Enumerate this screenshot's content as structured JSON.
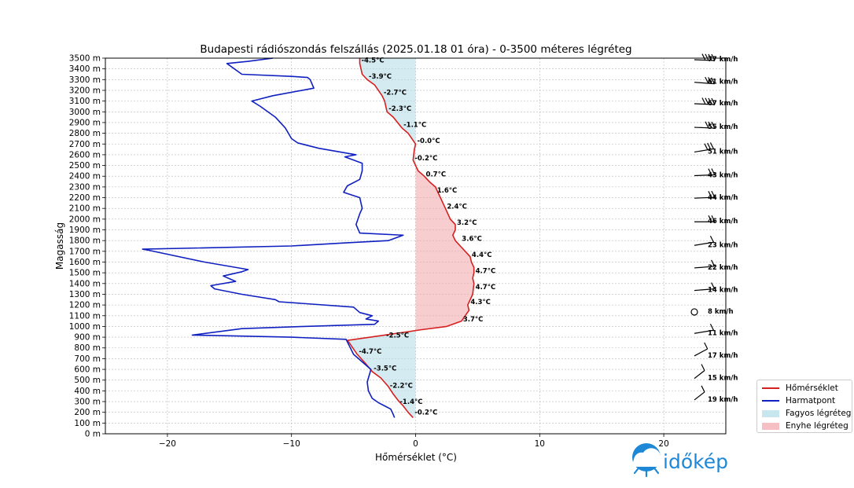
{
  "chart_data": {
    "type": "line",
    "title": "Budapesti rádiószondás felszállás (2025.01.18 01 óra) - 0-3500 méteres légréteg",
    "xlabel": "Hőmérséklet (°C)",
    "ylabel": "Magasság",
    "xlim": [
      -25,
      25
    ],
    "ylim": [
      0,
      3500
    ],
    "xticks": [
      -20,
      -10,
      0,
      10,
      20
    ],
    "xtick_labels": [
      "−20",
      "−10",
      "0",
      "10",
      "20"
    ],
    "yticks": [
      0,
      100,
      200,
      300,
      400,
      500,
      600,
      700,
      800,
      900,
      1000,
      1100,
      1200,
      1300,
      1400,
      1500,
      1600,
      1700,
      1800,
      1900,
      2000,
      2100,
      2200,
      2300,
      2400,
      2500,
      2600,
      2700,
      2800,
      2900,
      3000,
      3100,
      3200,
      3300,
      3400,
      3500
    ],
    "ytick_suffix": " m",
    "grid": true,
    "legend_position": "outside-right-bottom",
    "series": [
      {
        "name": "Hőmérséklet",
        "color": "#d62020",
        "points": [
          [
            -0.2,
            150
          ],
          [
            -0.6,
            200
          ],
          [
            -1.0,
            260
          ],
          [
            -1.4,
            310
          ],
          [
            -1.8,
            370
          ],
          [
            -2.2,
            440
          ],
          [
            -2.8,
            520
          ],
          [
            -3.5,
            580
          ],
          [
            -4.0,
            650
          ],
          [
            -4.7,
            740
          ],
          [
            -5.3,
            840
          ],
          [
            -5.5,
            870
          ],
          [
            -2.5,
            920
          ],
          [
            0.5,
            970
          ],
          [
            2.5,
            1000
          ],
          [
            3.7,
            1050
          ],
          [
            4.0,
            1100
          ],
          [
            4.3,
            1150
          ],
          [
            4.2,
            1200
          ],
          [
            4.6,
            1300
          ],
          [
            4.7,
            1400
          ],
          [
            4.6,
            1450
          ],
          [
            4.7,
            1500
          ],
          [
            4.7,
            1550
          ],
          [
            4.5,
            1600
          ],
          [
            4.4,
            1650
          ],
          [
            4.0,
            1700
          ],
          [
            3.6,
            1750
          ],
          [
            3.2,
            1800
          ],
          [
            3.0,
            1850
          ],
          [
            3.2,
            1900
          ],
          [
            3.2,
            1950
          ],
          [
            2.8,
            2000
          ],
          [
            2.4,
            2100
          ],
          [
            2.0,
            2200
          ],
          [
            1.6,
            2300
          ],
          [
            1.1,
            2350
          ],
          [
            0.7,
            2400
          ],
          [
            0.2,
            2450
          ],
          [
            -0.2,
            2550
          ],
          [
            -0.1,
            2650
          ],
          [
            0.0,
            2700
          ],
          [
            -0.6,
            2800
          ],
          [
            -1.1,
            2850
          ],
          [
            -1.8,
            2950
          ],
          [
            -2.3,
            3000
          ],
          [
            -2.5,
            3100
          ],
          [
            -2.7,
            3150
          ],
          [
            -3.3,
            3250
          ],
          [
            -3.9,
            3300
          ],
          [
            -4.3,
            3350
          ],
          [
            -4.5,
            3450
          ],
          [
            -4.5,
            3500
          ]
        ]
      },
      {
        "name": "Harmatpont",
        "color": "#1020c0",
        "points": [
          [
            -1.7,
            150
          ],
          [
            -1.8,
            180
          ],
          [
            -2.0,
            230
          ],
          [
            -2.5,
            260
          ],
          [
            -3.0,
            290
          ],
          [
            -3.5,
            330
          ],
          [
            -3.8,
            400
          ],
          [
            -3.9,
            480
          ],
          [
            -3.8,
            520
          ],
          [
            -3.6,
            600
          ],
          [
            -4.2,
            660
          ],
          [
            -5.0,
            740
          ],
          [
            -5.6,
            880
          ],
          [
            -10.0,
            900
          ],
          [
            -14.0,
            910
          ],
          [
            -18.0,
            920
          ],
          [
            -14.0,
            980
          ],
          [
            -9.0,
            1000
          ],
          [
            -3.3,
            1020
          ],
          [
            -3.0,
            1050
          ],
          [
            -4.0,
            1070
          ],
          [
            -3.5,
            1100
          ],
          [
            -4.5,
            1130
          ],
          [
            -5.0,
            1180
          ],
          [
            -11.0,
            1230
          ],
          [
            -11.3,
            1250
          ],
          [
            -14.0,
            1300
          ],
          [
            -16.2,
            1350
          ],
          [
            -16.5,
            1380
          ],
          [
            -14.5,
            1420
          ],
          [
            -15.5,
            1470
          ],
          [
            -14.0,
            1510
          ],
          [
            -13.5,
            1530
          ],
          [
            -17.0,
            1600
          ],
          [
            -21.5,
            1710
          ],
          [
            -22.0,
            1720
          ],
          [
            -10.0,
            1750
          ],
          [
            -5.5,
            1780
          ],
          [
            -2.2,
            1800
          ],
          [
            -1.0,
            1850
          ],
          [
            -4.5,
            1870
          ],
          [
            -4.8,
            1950
          ],
          [
            -4.5,
            2050
          ],
          [
            -4.3,
            2100
          ],
          [
            -4.5,
            2200
          ],
          [
            -5.8,
            2250
          ],
          [
            -5.5,
            2310
          ],
          [
            -4.5,
            2370
          ],
          [
            -4.3,
            2450
          ],
          [
            -4.3,
            2520
          ],
          [
            -5.7,
            2580
          ],
          [
            -4.8,
            2600
          ],
          [
            -7.8,
            2660
          ],
          [
            -9.5,
            2710
          ],
          [
            -10.0,
            2750
          ],
          [
            -10.5,
            2850
          ],
          [
            -11.3,
            2950
          ],
          [
            -12.5,
            3050
          ],
          [
            -13.2,
            3100
          ],
          [
            -11.5,
            3150
          ],
          [
            -8.2,
            3220
          ],
          [
            -8.5,
            3300
          ],
          [
            -8.7,
            3320
          ],
          [
            -10.0,
            3330
          ],
          [
            -14.0,
            3350
          ],
          [
            -15.2,
            3450
          ],
          [
            -13.5,
            3470
          ],
          [
            -11.5,
            3500
          ]
        ]
      }
    ],
    "fills": [
      {
        "name": "Fagyos légréteg",
        "color": "#b0dbe6"
      },
      {
        "name": "Enyhe légréteg",
        "color": "#f2a4aa"
      }
    ],
    "temperature_labels": [
      {
        "y": 200,
        "x": -0.2,
        "text": "-0.2°C"
      },
      {
        "y": 300,
        "x": -1.4,
        "text": "-1.4°C"
      },
      {
        "y": 450,
        "x": -2.2,
        "text": "-2.2°C"
      },
      {
        "y": 610,
        "x": -3.5,
        "text": "-3.5°C"
      },
      {
        "y": 770,
        "x": -4.7,
        "text": "-4.7°C"
      },
      {
        "y": 920,
        "x": -2.5,
        "text": "-2.5°C"
      },
      {
        "y": 1070,
        "x": 3.7,
        "text": "3.7°C"
      },
      {
        "y": 1230,
        "x": 4.3,
        "text": "4.3°C"
      },
      {
        "y": 1370,
        "x": 4.7,
        "text": "4.7°C"
      },
      {
        "y": 1520,
        "x": 4.7,
        "text": "4.7°C"
      },
      {
        "y": 1670,
        "x": 4.4,
        "text": "4.4°C"
      },
      {
        "y": 1820,
        "x": 3.6,
        "text": "3.6°C"
      },
      {
        "y": 1970,
        "x": 3.2,
        "text": "3.2°C"
      },
      {
        "y": 2120,
        "x": 2.4,
        "text": "2.4°C"
      },
      {
        "y": 2270,
        "x": 1.6,
        "text": "1.6°C"
      },
      {
        "y": 2420,
        "x": 0.7,
        "text": "0.7°C"
      },
      {
        "y": 2570,
        "x": -0.2,
        "text": "-0.2°C"
      },
      {
        "y": 2730,
        "x": 0.0,
        "text": "-0.0°C"
      },
      {
        "y": 2880,
        "x": -1.1,
        "text": "-1.1°C"
      },
      {
        "y": 3030,
        "x": -2.3,
        "text": "-2.3°C"
      },
      {
        "y": 3180,
        "x": -2.7,
        "text": "-2.7°C"
      },
      {
        "y": 3330,
        "x": -3.9,
        "text": "-3.9°C"
      },
      {
        "y": 3480,
        "x": -4.5,
        "text": "-4.5°C"
      }
    ],
    "wind": [
      {
        "y": 330,
        "speed": "19 km/h",
        "dir": 210
      },
      {
        "y": 530,
        "speed": "15 km/h",
        "dir": 210
      },
      {
        "y": 740,
        "speed": "17 km/h",
        "dir": 220
      },
      {
        "y": 950,
        "speed": "11 km/h",
        "dir": 250
      },
      {
        "y": 1150,
        "speed": "8 km/h",
        "dir": null
      },
      {
        "y": 1350,
        "speed": "14 km/h",
        "dir": 260
      },
      {
        "y": 1560,
        "speed": "22 km/h",
        "dir": 260
      },
      {
        "y": 1770,
        "speed": "23 km/h",
        "dir": 250
      },
      {
        "y": 1990,
        "speed": "46 km/h",
        "dir": 270
      },
      {
        "y": 2210,
        "speed": "44 km/h",
        "dir": 265
      },
      {
        "y": 2420,
        "speed": "43 km/h",
        "dir": 265
      },
      {
        "y": 2640,
        "speed": "51 km/h",
        "dir": 250
      },
      {
        "y": 2870,
        "speed": "55 km/h",
        "dir": 275
      },
      {
        "y": 3090,
        "speed": "67 km/h",
        "dir": 275
      },
      {
        "y": 3290,
        "speed": "61 km/h",
        "dir": 280
      },
      {
        "y": 3500,
        "speed": "77 km/h",
        "dir": 275
      }
    ]
  },
  "legend": {
    "items": [
      {
        "label": "Hőmérséklet",
        "kind": "line",
        "color": "#d62020"
      },
      {
        "label": "Harmatpont",
        "kind": "line",
        "color": "#1020c0"
      },
      {
        "label": "Fagyos légréteg",
        "kind": "patch",
        "color": "#b0dbe6"
      },
      {
        "label": "Enyhe légréteg",
        "kind": "patch",
        "color": "#f2a4aa"
      }
    ]
  },
  "logo": {
    "text": "időkép",
    "color": "#1e88d6",
    "icon": "sun-cloud-icon"
  }
}
